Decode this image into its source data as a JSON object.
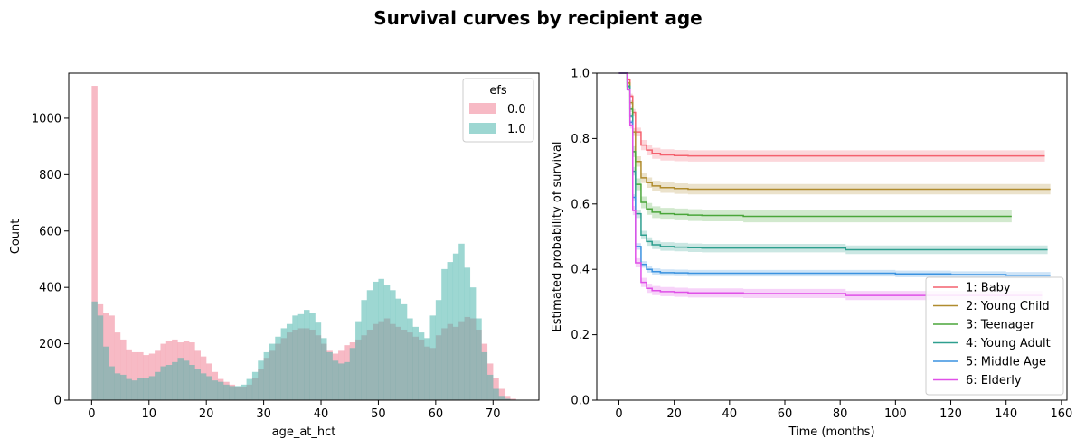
{
  "figure": {
    "title": "Survival curves by recipient age"
  },
  "chart_data": [
    {
      "type": "bar",
      "subtype": "histogram",
      "xlabel": "age_at_hct",
      "ylabel": "Count",
      "xlim": [
        -4,
        78
      ],
      "ylim": [
        0,
        1160
      ],
      "xticks": [
        0,
        10,
        20,
        30,
        40,
        50,
        60,
        70
      ],
      "yticks": [
        0,
        200,
        400,
        600,
        800,
        1000
      ],
      "legend": {
        "title": "efs",
        "placement": "upper right"
      },
      "bin_start": 0,
      "bin_width": 1,
      "series": [
        {
          "name": "0.0",
          "color": "#f08296",
          "values": [
            1115,
            340,
            310,
            300,
            240,
            215,
            180,
            170,
            170,
            160,
            165,
            175,
            200,
            210,
            215,
            205,
            210,
            205,
            175,
            155,
            130,
            100,
            75,
            65,
            55,
            45,
            45,
            55,
            80,
            110,
            150,
            175,
            200,
            220,
            240,
            250,
            255,
            255,
            250,
            230,
            200,
            175,
            165,
            175,
            195,
            205,
            215,
            230,
            250,
            270,
            280,
            290,
            270,
            260,
            250,
            240,
            225,
            215,
            190,
            185,
            230,
            255,
            270,
            260,
            280,
            295,
            290,
            250,
            200,
            130,
            80,
            40,
            15,
            5
          ]
        },
        {
          "name": "1.0",
          "color": "#3bafa6",
          "values": [
            350,
            300,
            190,
            120,
            95,
            90,
            75,
            70,
            80,
            80,
            85,
            100,
            120,
            125,
            135,
            150,
            140,
            125,
            110,
            95,
            85,
            70,
            65,
            55,
            50,
            50,
            55,
            75,
            100,
            140,
            170,
            200,
            225,
            255,
            270,
            300,
            305,
            320,
            310,
            275,
            220,
            170,
            140,
            130,
            135,
            185,
            280,
            355,
            390,
            420,
            430,
            410,
            390,
            360,
            340,
            290,
            260,
            240,
            220,
            300,
            355,
            465,
            490,
            520,
            555,
            470,
            400,
            290,
            170,
            90,
            40,
            15,
            5,
            2
          ]
        }
      ]
    },
    {
      "type": "line",
      "subtype": "step",
      "xlabel": "Time (months)",
      "ylabel": "Estimated probability of survival",
      "xlim": [
        -8,
        162
      ],
      "ylim": [
        0,
        1
      ],
      "xticks": [
        0,
        20,
        40,
        60,
        80,
        100,
        120,
        140,
        160
      ],
      "yticks": [
        "0.0",
        "0.2",
        "0.4",
        "0.6",
        "0.8",
        "1.0"
      ],
      "legend": {
        "placement": "lower right"
      },
      "time_points": [
        0,
        3,
        4,
        5,
        6,
        8,
        10,
        12,
        15,
        20,
        25,
        30,
        45,
        60,
        80,
        82,
        100,
        120,
        140
      ],
      "series": [
        {
          "name": "1: Baby",
          "color": "#f4616e",
          "end": 154,
          "ci": 0.018,
          "values": [
            1.0,
            0.98,
            0.93,
            0.88,
            0.82,
            0.78,
            0.765,
            0.755,
            0.75,
            0.748,
            0.747,
            0.747,
            0.747,
            0.747,
            0.747,
            0.747,
            0.747,
            0.747,
            0.747
          ]
        },
        {
          "name": "2: Young Child",
          "color": "#b08c2e",
          "end": 156,
          "ci": 0.016,
          "values": [
            1.0,
            0.97,
            0.91,
            0.82,
            0.73,
            0.68,
            0.665,
            0.655,
            0.65,
            0.647,
            0.645,
            0.645,
            0.645,
            0.645,
            0.645,
            0.645,
            0.645,
            0.645,
            0.645
          ]
        },
        {
          "name": "3: Teenager",
          "color": "#4aa63a",
          "end": 142,
          "ci": 0.018,
          "values": [
            1.0,
            0.96,
            0.89,
            0.76,
            0.66,
            0.605,
            0.585,
            0.575,
            0.57,
            0.568,
            0.566,
            0.565,
            0.562,
            0.562,
            0.562,
            0.562,
            0.562,
            0.562,
            0.562
          ]
        },
        {
          "name": "4: Young Adult",
          "color": "#2e9f8f",
          "end": 155,
          "ci": 0.013,
          "values": [
            1.0,
            0.96,
            0.87,
            0.7,
            0.57,
            0.505,
            0.485,
            0.475,
            0.47,
            0.468,
            0.466,
            0.465,
            0.465,
            0.465,
            0.465,
            0.46,
            0.46,
            0.46,
            0.46
          ]
        },
        {
          "name": "5: Middle Age",
          "color": "#3a92e0",
          "end": 156,
          "ci": 0.01,
          "values": [
            1.0,
            0.95,
            0.85,
            0.62,
            0.47,
            0.415,
            0.4,
            0.393,
            0.39,
            0.389,
            0.388,
            0.388,
            0.388,
            0.388,
            0.388,
            0.388,
            0.386,
            0.384,
            0.382
          ]
        },
        {
          "name": "6: Elderly",
          "color": "#e050e8",
          "end": 153,
          "ci": 0.014,
          "values": [
            1.0,
            0.95,
            0.84,
            0.58,
            0.42,
            0.36,
            0.342,
            0.335,
            0.332,
            0.33,
            0.328,
            0.328,
            0.326,
            0.326,
            0.326,
            0.32,
            0.32,
            0.32,
            0.32
          ]
        }
      ]
    }
  ]
}
